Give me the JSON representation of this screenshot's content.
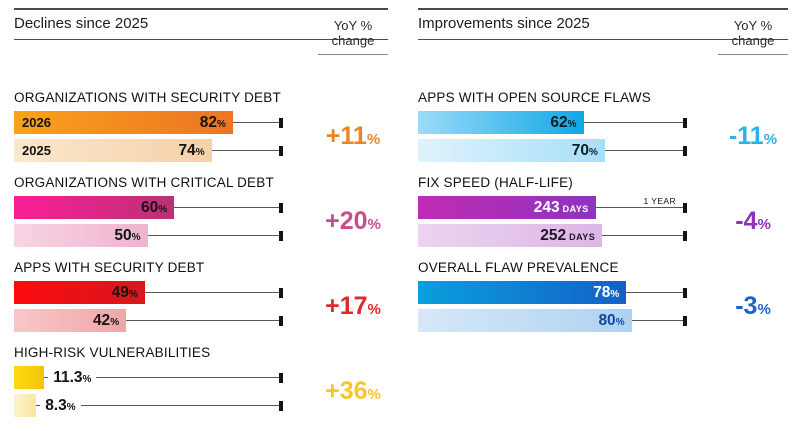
{
  "panels": [
    {
      "title": "Declines since 2025",
      "yoy_header_line1": "YoY %",
      "yoy_header_line2": "change"
    },
    {
      "title": "Improvements since 2025",
      "yoy_header_line1": "YoY %",
      "yoy_header_line2": "change"
    }
  ],
  "chart_data": [
    {
      "type": "bar",
      "title": "Declines since 2025",
      "orientation": "horizontal",
      "legend_note": "Each pair: top bar = 2026, bottom bar = 2025; line extends to 100% reference tick",
      "sections": [
        {
          "title": "ORGANIZATIONS WITH SECURITY DEBT",
          "yoy_value": "+11",
          "yoy_unit": "%",
          "yoy_color": "#ED8424",
          "axis_max": 100,
          "bars": [
            {
              "year_label": "2026",
              "value": 82,
              "value_text": "82",
              "unit": "%",
              "label_inside": true,
              "grad_from": "#F9A11C",
              "grad_to": "#EC7522",
              "text_color": "#141414"
            },
            {
              "year_label": "2025",
              "value": 74,
              "value_text": "74",
              "unit": "%",
              "label_inside": true,
              "grad_from": "#FAE7CD",
              "grad_to": "#F5D1A8",
              "text_color": "#141414"
            }
          ]
        },
        {
          "title": "ORGANIZATIONS WITH CRITICAL DEBT",
          "yoy_value": "+20",
          "yoy_unit": "%",
          "yoy_color": "#C94D89",
          "axis_max": 100,
          "bars": [
            {
              "value": 60,
              "value_text": "60",
              "unit": "%",
              "label_inside": true,
              "grad_from": "#FB1E98",
              "grad_to": "#BC3173",
              "text_color": "#141414"
            },
            {
              "value": 50,
              "value_text": "50",
              "unit": "%",
              "label_inside": true,
              "grad_from": "#F8D4E4",
              "grad_to": "#EFB3CF",
              "text_color": "#141414"
            }
          ]
        },
        {
          "title": "APPS WITH SECURITY DEBT",
          "yoy_value": "+17",
          "yoy_unit": "%",
          "yoy_color": "#DC2A30",
          "axis_max": 100,
          "bars": [
            {
              "value": 49,
              "value_text": "49",
              "unit": "%",
              "label_inside": true,
              "grad_from": "#FA0B0E",
              "grad_to": "#D7181F",
              "text_color": "#141414"
            },
            {
              "value": 42,
              "value_text": "42",
              "unit": "%",
              "label_inside": true,
              "grad_from": "#F9C7C8",
              "grad_to": "#F0A5A8",
              "text_color": "#141414"
            }
          ]
        },
        {
          "title": "HIGH-RISK VULNERABILITIES",
          "yoy_value": "+36",
          "yoy_unit": "%",
          "yoy_color": "#F8C52C",
          "axis_max": 100,
          "bars": [
            {
              "value": 11.3,
              "value_text": "11.3",
              "unit": "%",
              "label_inside": false,
              "grad_from": "#FEDB13",
              "grad_to": "#F3C20B",
              "text_color": "#141414"
            },
            {
              "value": 8.3,
              "value_text": "8.3",
              "unit": "%",
              "label_inside": false,
              "grad_from": "#FCF3C9",
              "grad_to": "#F8E7A2",
              "text_color": "#141414"
            }
          ]
        }
      ]
    },
    {
      "type": "bar",
      "title": "Improvements since 2025",
      "orientation": "horizontal",
      "legend_note": "Each pair: top bar = 2026, bottom bar = 2025; line extends to 100% (or 1 year) reference tick",
      "sections": [
        {
          "title": "APPS WITH OPEN SOURCE FLAWS",
          "yoy_value": "-11",
          "yoy_unit": "%",
          "yoy_color": "#2BB3E9",
          "axis_max": 100,
          "bars": [
            {
              "value": 62,
              "value_text": "62",
              "unit": "%",
              "label_inside": true,
              "grad_from": "#9ADCF8",
              "grad_to": "#0FA7E6",
              "text_color": "#101c26"
            },
            {
              "value": 70,
              "value_text": "70",
              "unit": "%",
              "label_inside": true,
              "grad_from": "#DFF3FD",
              "grad_to": "#A7DFF8",
              "text_color": "#101c26"
            }
          ]
        },
        {
          "title": "FIX SPEED (HALF-LIFE)",
          "yoy_value": "-4",
          "yoy_unit": "%",
          "yoy_color": "#9130BC",
          "axis_max": 365,
          "bars": [
            {
              "value": 243,
              "value_text": "243",
              "unit": "DAYS",
              "label_inside": true,
              "grad_from": "#C22BB2",
              "grad_to": "#8D34BE",
              "text_color": "#ffffff",
              "marker": "1 YEAR"
            },
            {
              "value": 252,
              "value_text": "252",
              "unit": "DAYS",
              "label_inside": true,
              "grad_from": "#ECD5F0",
              "grad_to": "#DCB6E4",
              "text_color": "#221329"
            }
          ]
        },
        {
          "title": "OVERALL FLAW PREVALENCE",
          "yoy_value": "-3",
          "yoy_unit": "%",
          "yoy_color": "#1C63C7",
          "axis_max": 100,
          "bars": [
            {
              "value": 78,
              "value_text": "78",
              "unit": "%",
              "label_inside": true,
              "grad_from": "#09A0DD",
              "grad_to": "#1560C6",
              "text_color": "#ffffff"
            },
            {
              "value": 80,
              "value_text": "80",
              "unit": "%",
              "label_inside": true,
              "grad_from": "#D6E8F8",
              "grad_to": "#AED2F1",
              "text_color": "#12479E"
            }
          ]
        }
      ]
    }
  ]
}
